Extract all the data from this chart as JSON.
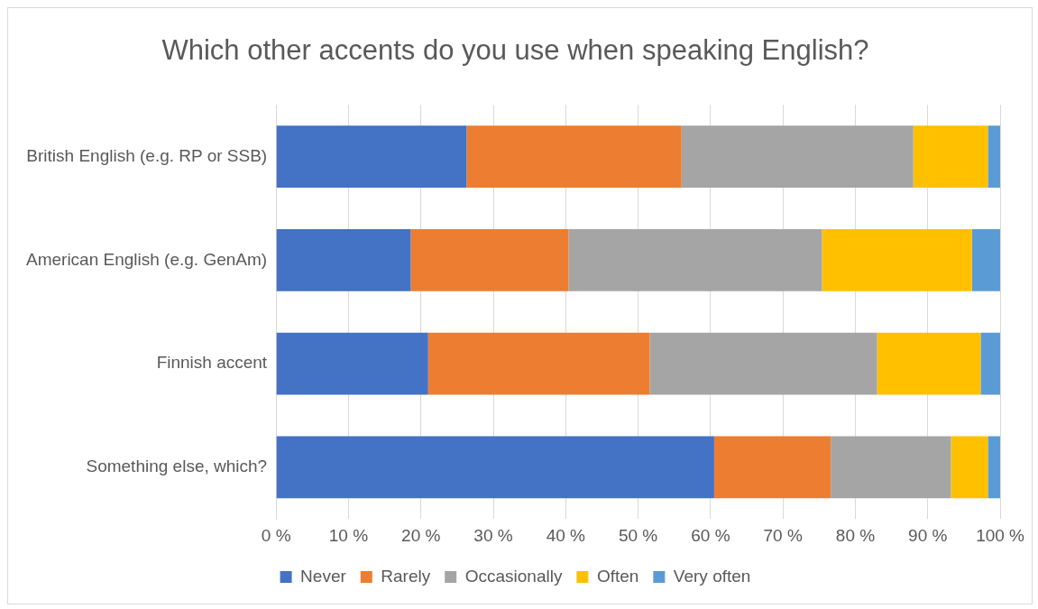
{
  "chart_data": {
    "type": "bar",
    "orientation": "horizontal",
    "stacked": true,
    "title": "Which other accents do you use when speaking English?",
    "categories": [
      "British English (e.g. RP or SSB)",
      "American English (e.g. GenAm)",
      "Finnish accent",
      "Something else, which?"
    ],
    "series": [
      {
        "name": "Never",
        "color": "#4472c4",
        "values": [
          26.3,
          18.6,
          21.0,
          60.5
        ]
      },
      {
        "name": "Rarely",
        "color": "#ed7d31",
        "values": [
          29.7,
          21.8,
          30.6,
          16.1
        ]
      },
      {
        "name": "Occasionally",
        "color": "#a5a5a5",
        "values": [
          32.0,
          35.0,
          31.4,
          16.6
        ]
      },
      {
        "name": "Often",
        "color": "#ffc000",
        "values": [
          10.3,
          20.7,
          14.3,
          5.1
        ]
      },
      {
        "name": "Very often",
        "color": "#5b9bd5",
        "values": [
          1.7,
          3.9,
          2.7,
          1.7
        ]
      }
    ],
    "xlim": [
      0,
      100
    ],
    "xticks": [
      {
        "value": 0,
        "label": "0 %"
      },
      {
        "value": 10,
        "label": "10 %"
      },
      {
        "value": 20,
        "label": "20 %"
      },
      {
        "value": 30,
        "label": "30 %"
      },
      {
        "value": 40,
        "label": "40 %"
      },
      {
        "value": 50,
        "label": "50 %"
      },
      {
        "value": 60,
        "label": "60 %"
      },
      {
        "value": 70,
        "label": "70 %"
      },
      {
        "value": 80,
        "label": "80 %"
      },
      {
        "value": 90,
        "label": "90 %"
      },
      {
        "value": 100,
        "label": "100 %"
      }
    ],
    "grid": "x",
    "legend": "bottom"
  }
}
